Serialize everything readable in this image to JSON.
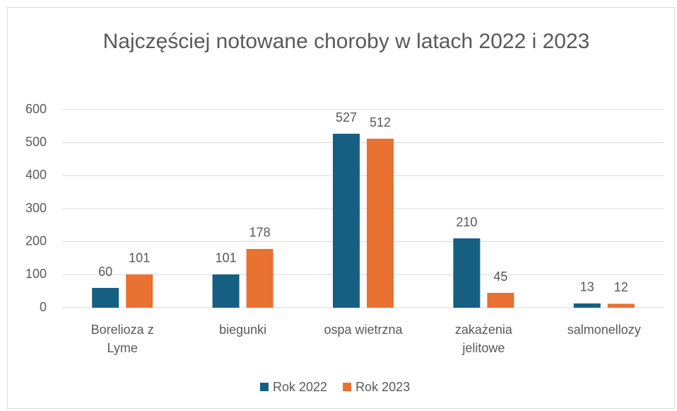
{
  "chart_data": {
    "type": "bar",
    "title": "Najczęściej notowane choroby w latach 2022 i 2023",
    "categories": [
      "Borelioza z Lyme",
      "biegunki",
      "ospa wietrzna",
      "zakażenia jelitowe",
      "salmonellozy"
    ],
    "series": [
      {
        "name": "Rok 2022",
        "color": "#156082",
        "values": [
          60,
          101,
          527,
          210,
          13
        ]
      },
      {
        "name": "Rok 2023",
        "color": "#e97132",
        "values": [
          101,
          178,
          512,
          45,
          12
        ]
      }
    ],
    "ylim": [
      0,
      600
    ],
    "yticks": [
      0,
      100,
      200,
      300,
      400,
      500,
      600
    ],
    "grid": true,
    "legend": "bottom"
  }
}
